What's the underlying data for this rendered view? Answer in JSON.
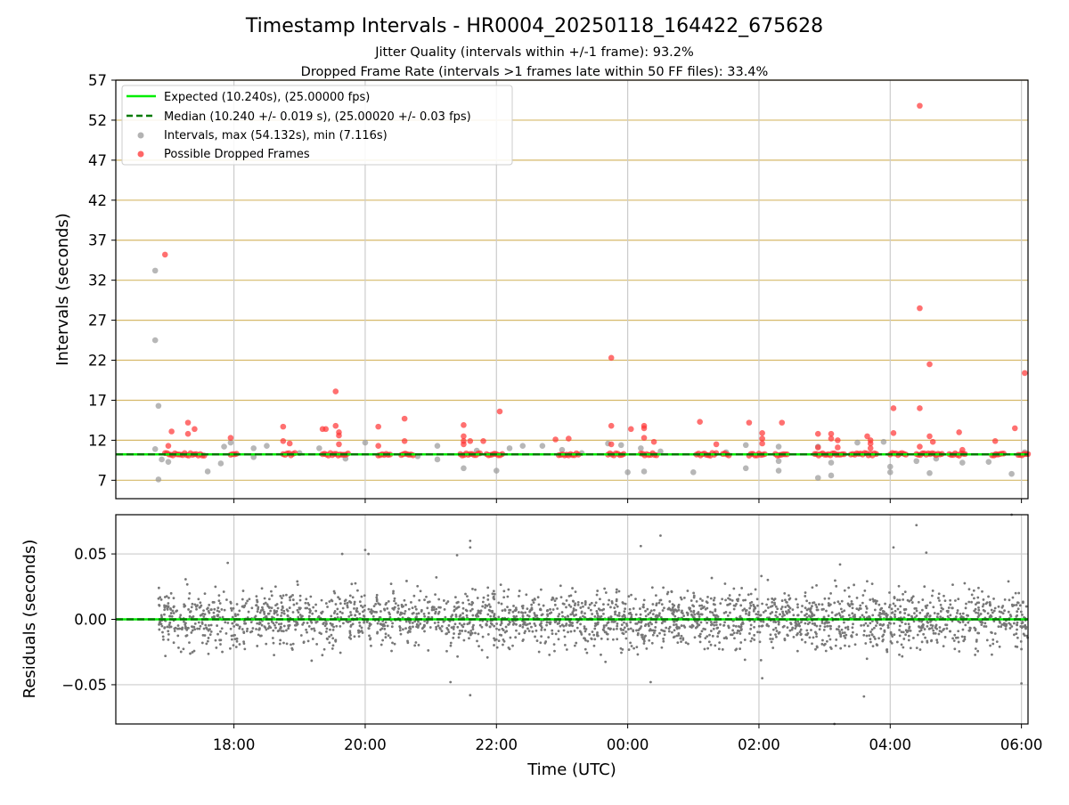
{
  "figure": {
    "title": "Timestamp Intervals - HR0004_20250118_164422_675628",
    "subtitle_1": "Jitter Quality (intervals within +/-1 frame): 93.2%",
    "subtitle_2": "Dropped Frame Rate (intervals >1 frames late within 50 FF files): 33.4%"
  },
  "colors": {
    "expected": "#00ee00",
    "median": "#007a00",
    "intervals": "#999999",
    "dropped": "#ff3333",
    "residuals": "#777777",
    "hgrid_top": "#d6b96a",
    "grid": "#cccccc"
  },
  "chart_data": [
    {
      "type": "scatter",
      "panel": "intervals",
      "ylabel": "Intervals (seconds)",
      "ylim": [
        4.7,
        57
      ],
      "yticks": [
        "57",
        "52",
        "47",
        "42",
        "37",
        "32",
        "27",
        "22",
        "17",
        "12",
        "7"
      ],
      "ytick_values": [
        57,
        52,
        47,
        42,
        37,
        32,
        27,
        22,
        17,
        12,
        7
      ],
      "xlim": [
        16.2,
        30.1
      ],
      "grid": "on",
      "legend_position": "top-left",
      "legend": [
        {
          "label": "Expected (10.240s), (25.00000 fps)",
          "style": "solid-line"
        },
        {
          "label": "Median (10.240 +/- 0.019 s), (25.00020 +/- 0.03 fps)",
          "style": "dashed-line"
        },
        {
          "label": "Intervals, max (54.132s), min (7.116s)",
          "style": "grey-dot"
        },
        {
          "label": "Possible Dropped Frames",
          "style": "red-dot"
        }
      ],
      "expected_interval": 10.24,
      "median_interval": 10.24,
      "series": [
        {
          "name": "Intervals, max (54.132s), min (7.116s)",
          "points": [
            [
              16.8,
              33.2
            ],
            [
              16.8,
              24.5
            ],
            [
              16.85,
              16.3
            ],
            [
              16.85,
              7.1
            ],
            [
              16.8,
              10.9
            ],
            [
              16.9,
              9.6
            ],
            [
              17.0,
              9.3
            ],
            [
              17.6,
              8.1
            ],
            [
              17.8,
              9.1
            ],
            [
              17.85,
              11.2
            ],
            [
              17.95,
              11.7
            ],
            [
              18.3,
              9.9
            ],
            [
              18.3,
              11.0
            ],
            [
              18.5,
              11.3
            ],
            [
              19.0,
              10.4
            ],
            [
              19.3,
              11.0
            ],
            [
              19.7,
              9.7
            ],
            [
              20.0,
              11.7
            ],
            [
              20.8,
              10.0
            ],
            [
              21.1,
              11.3
            ],
            [
              21.1,
              9.6
            ],
            [
              21.5,
              8.5
            ],
            [
              21.7,
              10.7
            ],
            [
              22.0,
              8.2
            ],
            [
              22.2,
              11.0
            ],
            [
              22.4,
              11.3
            ],
            [
              22.7,
              11.3
            ],
            [
              23.0,
              10.8
            ],
            [
              23.3,
              10.4
            ],
            [
              23.7,
              11.6
            ],
            [
              23.9,
              11.4
            ],
            [
              24.0,
              8.0
            ],
            [
              24.25,
              8.1
            ],
            [
              24.2,
              11.0
            ],
            [
              24.5,
              10.6
            ],
            [
              25.0,
              8.0
            ],
            [
              25.5,
              10.5
            ],
            [
              25.8,
              8.5
            ],
            [
              25.8,
              11.4
            ],
            [
              26.3,
              9.4
            ],
            [
              26.3,
              8.2
            ],
            [
              26.3,
              11.2
            ],
            [
              26.9,
              7.3
            ],
            [
              26.9,
              11.2
            ],
            [
              27.1,
              9.2
            ],
            [
              27.1,
              7.6
            ],
            [
              27.5,
              11.7
            ],
            [
              27.9,
              11.8
            ],
            [
              28.0,
              8.0
            ],
            [
              28.0,
              8.7
            ],
            [
              28.4,
              9.4
            ],
            [
              28.6,
              7.9
            ],
            [
              28.7,
              9.7
            ],
            [
              29.1,
              9.2
            ],
            [
              29.5,
              9.3
            ],
            [
              29.6,
              10.2
            ],
            [
              29.85,
              7.8
            ],
            [
              30.05,
              10.5
            ]
          ]
        },
        {
          "name": "Possible Dropped Frames",
          "points": [
            [
              16.95,
              35.2
            ],
            [
              17.0,
              11.3
            ],
            [
              17.05,
              13.1
            ],
            [
              17.3,
              14.2
            ],
            [
              17.3,
              12.8
            ],
            [
              17.4,
              13.4
            ],
            [
              17.95,
              12.3
            ],
            [
              18.75,
              13.7
            ],
            [
              18.75,
              11.9
            ],
            [
              18.85,
              11.6
            ],
            [
              19.35,
              13.4
            ],
            [
              19.4,
              13.4
            ],
            [
              19.55,
              18.1
            ],
            [
              19.55,
              13.8
            ],
            [
              19.6,
              13.0
            ],
            [
              19.6,
              12.6
            ],
            [
              19.6,
              11.5
            ],
            [
              20.2,
              13.7
            ],
            [
              20.2,
              11.3
            ],
            [
              20.6,
              14.7
            ],
            [
              20.6,
              11.9
            ],
            [
              21.5,
              13.9
            ],
            [
              21.5,
              12.5
            ],
            [
              21.5,
              11.9
            ],
            [
              21.5,
              11.5
            ],
            [
              21.6,
              11.9
            ],
            [
              21.8,
              11.9
            ],
            [
              22.05,
              15.6
            ],
            [
              22.9,
              12.1
            ],
            [
              23.1,
              12.2
            ],
            [
              23.75,
              22.3
            ],
            [
              23.75,
              13.8
            ],
            [
              23.75,
              11.5
            ],
            [
              24.05,
              13.4
            ],
            [
              24.25,
              13.8
            ],
            [
              24.25,
              13.5
            ],
            [
              24.25,
              12.3
            ],
            [
              24.4,
              11.8
            ],
            [
              25.1,
              14.3
            ],
            [
              25.35,
              11.5
            ],
            [
              25.85,
              14.2
            ],
            [
              26.05,
              12.9
            ],
            [
              26.05,
              12.2
            ],
            [
              26.05,
              11.6
            ],
            [
              26.35,
              14.2
            ],
            [
              26.9,
              12.8
            ],
            [
              26.9,
              11.1
            ],
            [
              27.1,
              12.8
            ],
            [
              27.1,
              12.2
            ],
            [
              27.2,
              12.0
            ],
            [
              27.2,
              11.1
            ],
            [
              27.65,
              12.5
            ],
            [
              27.7,
              12.0
            ],
            [
              27.7,
              11.6
            ],
            [
              27.7,
              11.0
            ],
            [
              28.05,
              16.0
            ],
            [
              28.05,
              12.9
            ],
            [
              28.45,
              53.8
            ],
            [
              28.45,
              28.5
            ],
            [
              28.45,
              16.0
            ],
            [
              28.45,
              11.2
            ],
            [
              28.6,
              21.5
            ],
            [
              28.6,
              12.5
            ],
            [
              28.65,
              11.8
            ],
            [
              29.05,
              13.0
            ],
            [
              29.1,
              10.8
            ],
            [
              29.6,
              11.9
            ],
            [
              29.9,
              13.5
            ],
            [
              30.05,
              20.4
            ]
          ],
          "dense_clusters_at_y": 10.24,
          "dense_clusters_x_ranges": [
            [
              16.95,
              17.55
            ],
            [
              17.95,
              18.05
            ],
            [
              18.75,
              18.95
            ],
            [
              19.35,
              19.75
            ],
            [
              20.2,
              20.4
            ],
            [
              20.55,
              20.75
            ],
            [
              21.45,
              21.75
            ],
            [
              21.85,
              22.1
            ],
            [
              22.95,
              23.25
            ],
            [
              23.7,
              23.95
            ],
            [
              24.2,
              24.45
            ],
            [
              25.05,
              25.35
            ],
            [
              25.45,
              25.55
            ],
            [
              25.85,
              26.1
            ],
            [
              26.25,
              26.45
            ],
            [
              26.85,
              27.3
            ],
            [
              27.4,
              27.8
            ],
            [
              28.0,
              28.25
            ],
            [
              28.4,
              28.8
            ],
            [
              28.9,
              29.15
            ],
            [
              29.55,
              29.75
            ],
            [
              29.95,
              30.1
            ]
          ]
        }
      ]
    },
    {
      "type": "scatter",
      "panel": "residuals",
      "ylabel": "Residuals (seconds)",
      "ylim": [
        -0.08,
        0.08
      ],
      "yticks": [
        "0.05",
        "0.00",
        "−0.05"
      ],
      "ytick_values": [
        0.05,
        0.0,
        -0.05
      ],
      "xlim": [
        16.2,
        30.1
      ],
      "xlabel": "Time (UTC)",
      "xticks": [
        "18:00",
        "20:00",
        "22:00",
        "00:00",
        "02:00",
        "04:00",
        "06:00"
      ],
      "xtick_values": [
        18,
        20,
        22,
        24,
        26,
        28,
        30
      ],
      "grid": "on",
      "x_range": [
        16.85,
        30.1
      ],
      "spread_std": 0.011,
      "point_count": 2600,
      "outliers": [
        [
          19.65,
          0.05
        ],
        [
          20.0,
          0.053
        ],
        [
          20.05,
          0.05
        ],
        [
          21.4,
          0.049
        ],
        [
          21.6,
          0.06
        ],
        [
          21.6,
          0.055
        ],
        [
          24.5,
          0.064
        ],
        [
          24.2,
          0.056
        ],
        [
          28.4,
          0.072
        ],
        [
          28.55,
          0.051
        ],
        [
          28.05,
          0.055
        ],
        [
          29.85,
          0.08
        ],
        [
          21.3,
          -0.048
        ],
        [
          21.6,
          -0.058
        ],
        [
          24.35,
          -0.048
        ],
        [
          26.05,
          -0.045
        ],
        [
          27.15,
          -0.08
        ],
        [
          27.6,
          -0.059
        ],
        [
          30.0,
          -0.049
        ]
      ]
    }
  ]
}
